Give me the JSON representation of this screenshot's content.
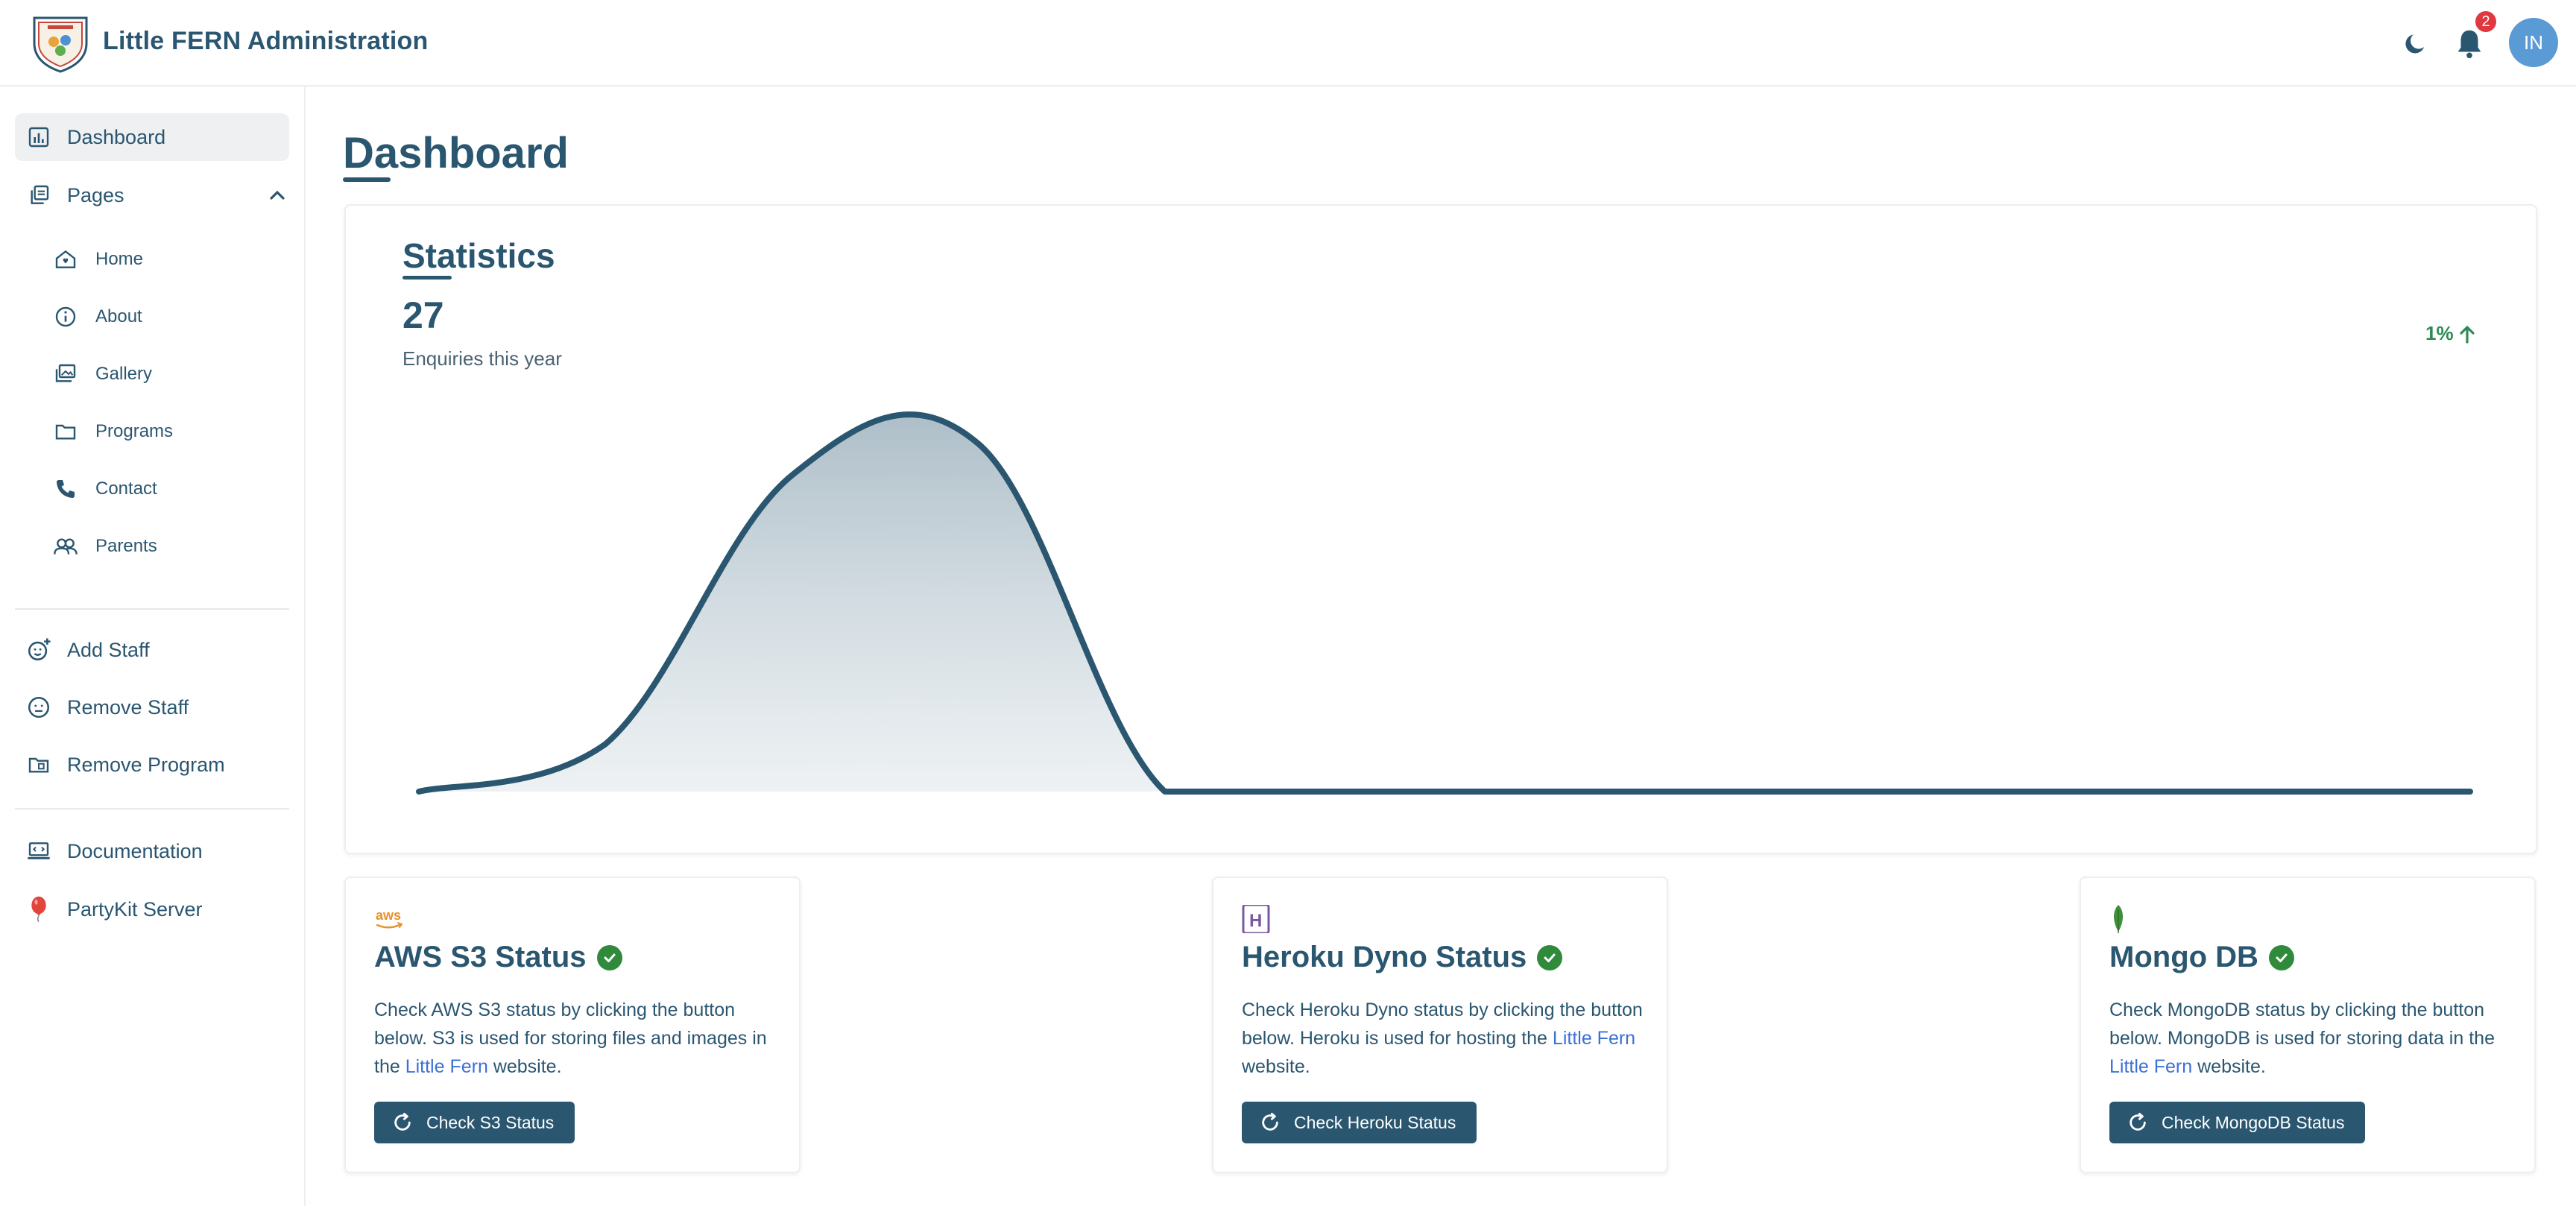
{
  "header": {
    "title": "Little FERN Administration",
    "notification_count": "2",
    "avatar_initials": "IN",
    "icons": [
      "logo-badge",
      "moon-icon",
      "bell-icon"
    ]
  },
  "sidebar": {
    "dashboard": "Dashboard",
    "pages": "Pages",
    "sub_items": [
      "Home",
      "About",
      "Gallery",
      "Programs",
      "Contact",
      "Parents"
    ],
    "add_staff": "Add Staff",
    "remove_staff": "Remove Staff",
    "remove_program": "Remove Program",
    "documentation": "Documentation",
    "partykit": "PartyKit Server"
  },
  "main": {
    "page_title": "Dashboard",
    "stats": {
      "title": "Statistics",
      "value": "27",
      "caption": "Enquiries this year",
      "trend": "1%"
    },
    "cards": [
      {
        "title": "AWS S3 Status",
        "icon_text": "aws",
        "desc_before": "Check AWS S3 status by clicking the button below. S3 is used for storing files and images in the ",
        "link": "Little Fern",
        "desc_after": " website.",
        "button": "Check S3 Status"
      },
      {
        "title": "Heroku Dyno Status",
        "icon_text": "H",
        "desc_before": "Check Heroku Dyno status by clicking the button below. Heroku is used for hosting the ",
        "link": "Little Fern",
        "desc_after": " website.",
        "button": "Check Heroku Status"
      },
      {
        "title": "Mongo DB",
        "icon_text": "",
        "desc_before": "Check MongoDB status by clicking the button below. MongoDB is used for storing data in the ",
        "link": "Little Fern",
        "desc_after": " website.",
        "button": "Check MongoDB Status"
      }
    ]
  },
  "colors": {
    "primary": "#2a5670",
    "badge": "#e0383e",
    "avatar": "#5b9bd5",
    "success": "#2f8a3c",
    "trend": "#2e8b57",
    "link": "#3b6fd8"
  },
  "chart_data": {
    "type": "area",
    "x": [
      0,
      1,
      2,
      3,
      4,
      5,
      6,
      7,
      8,
      9,
      10,
      11
    ],
    "values": [
      0,
      3,
      20,
      22,
      0,
      0,
      0,
      0,
      0,
      0,
      0,
      0
    ],
    "grid": false,
    "legend": "none"
  }
}
